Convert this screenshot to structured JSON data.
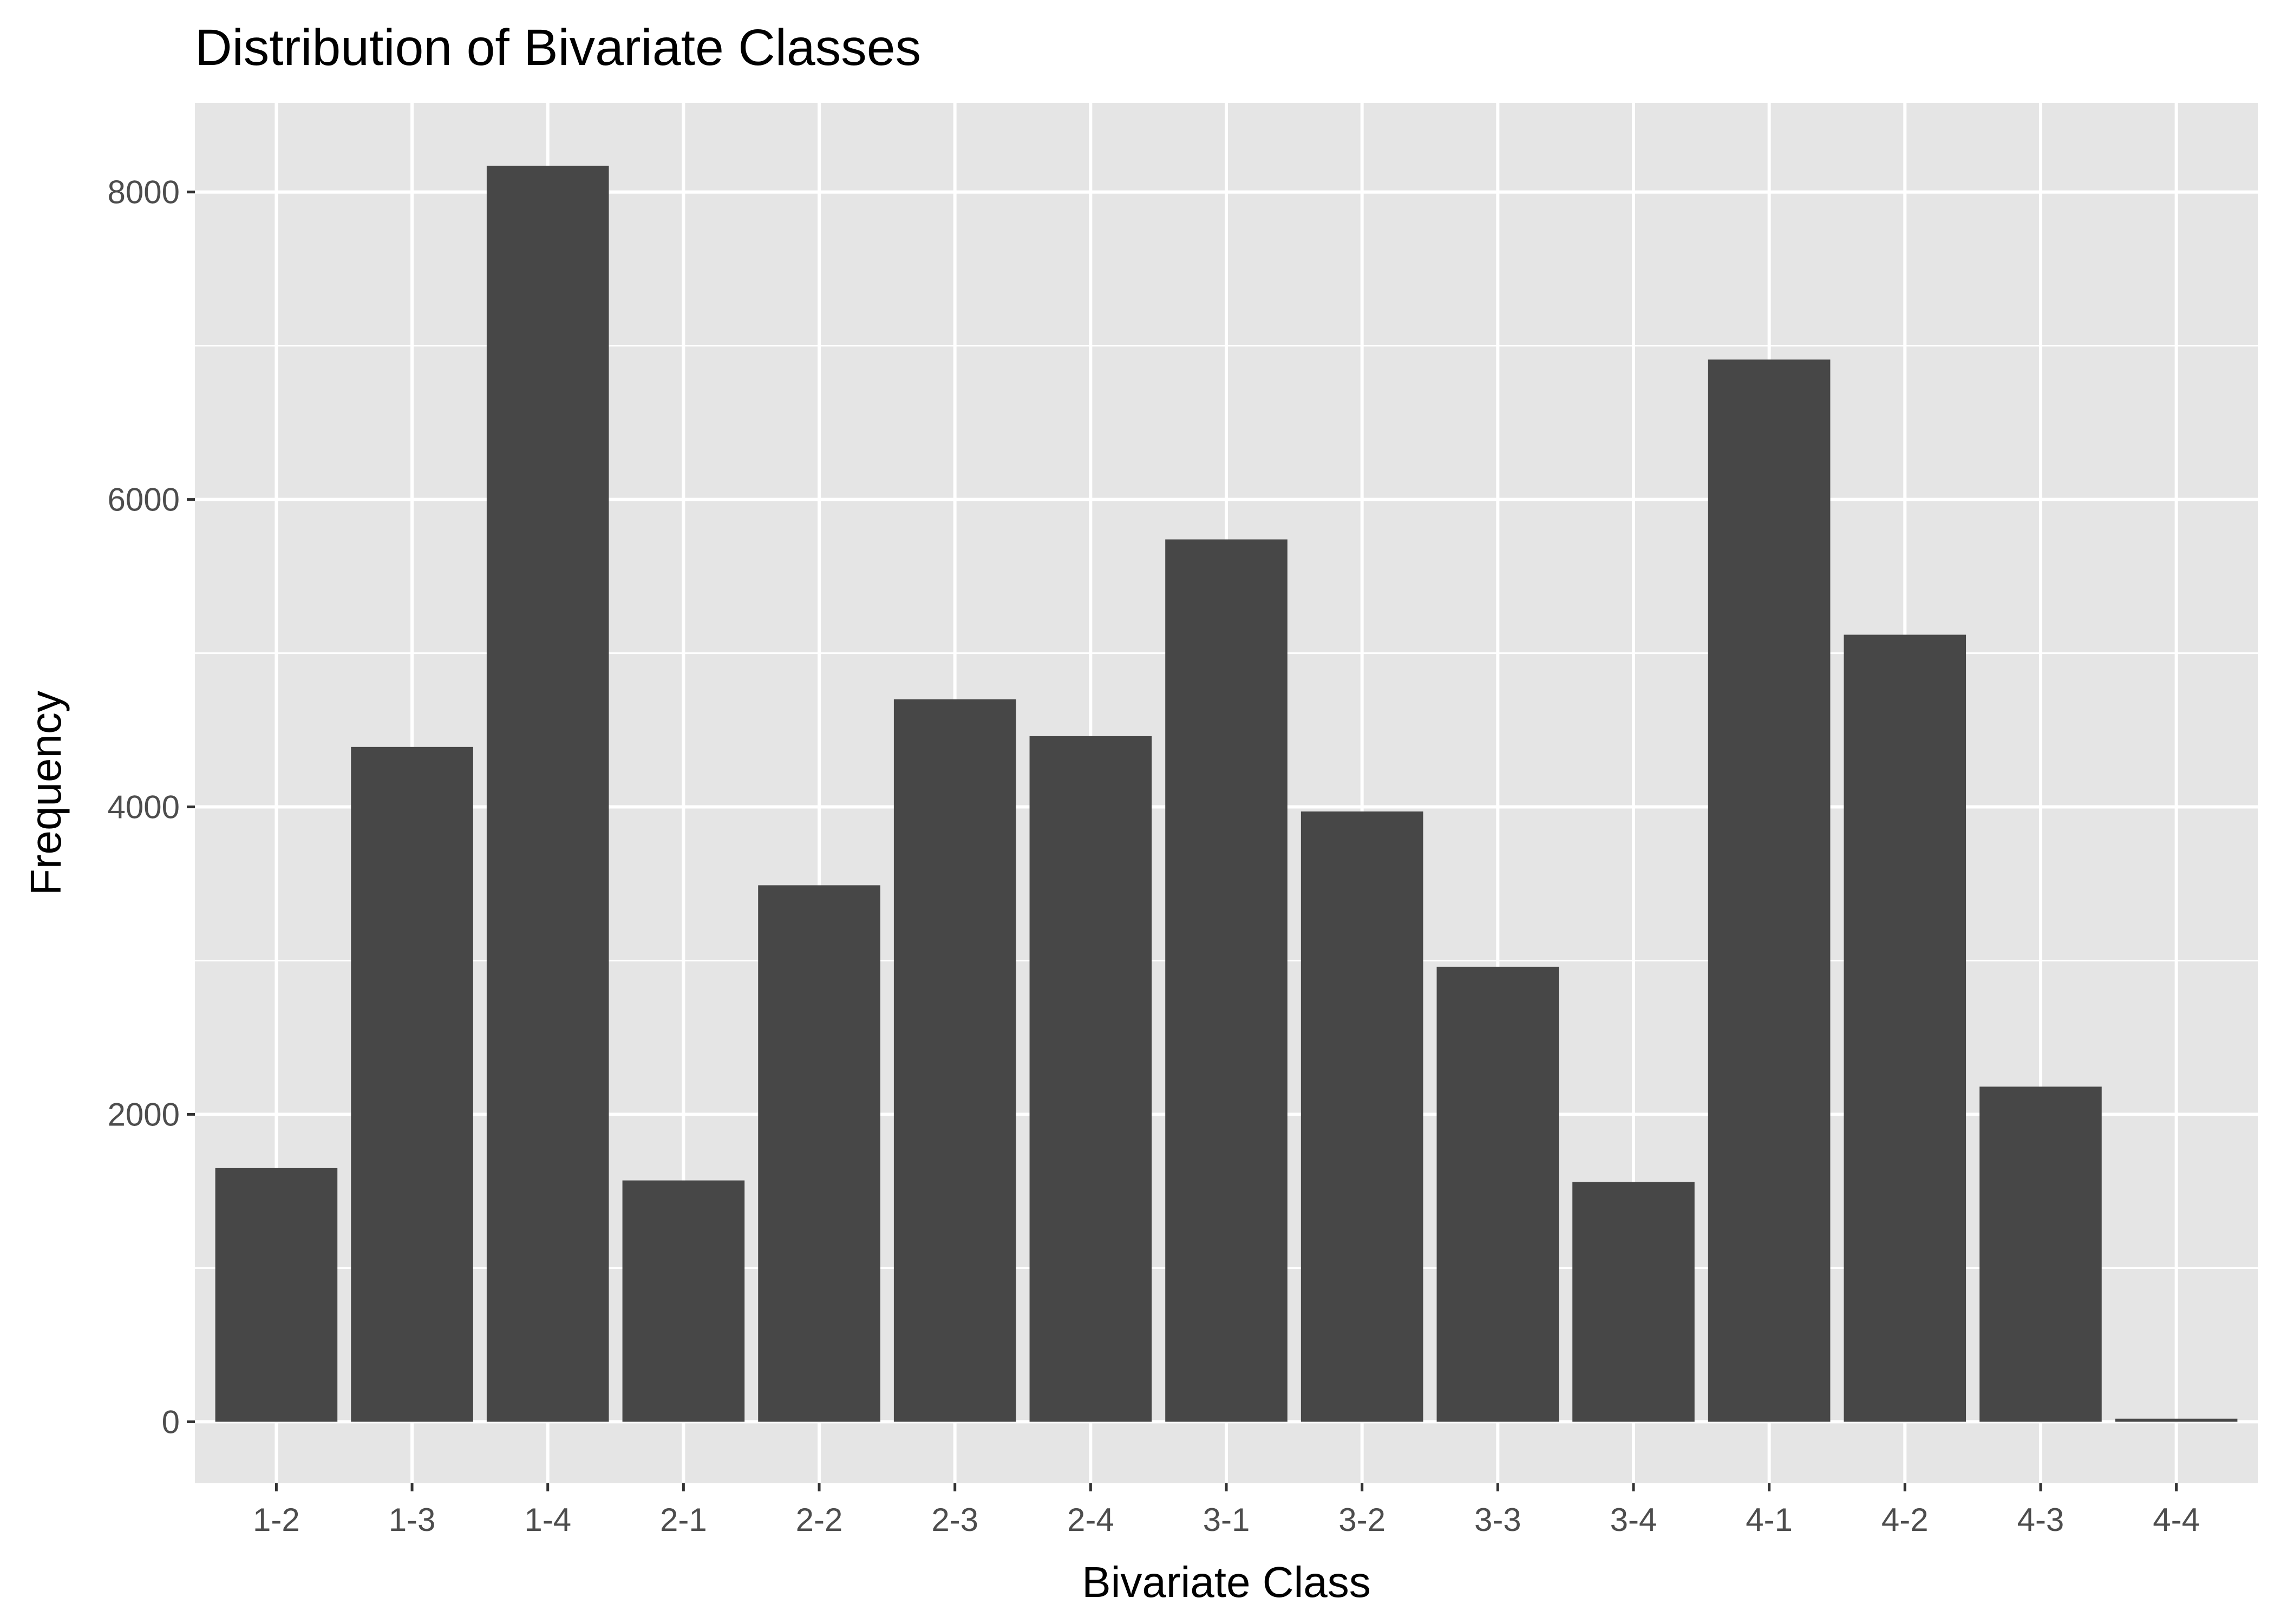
{
  "chart_data": {
    "type": "bar",
    "title": "Distribution of Bivariate Classes",
    "xlabel": "Bivariate Class",
    "ylabel": "Frequency",
    "categories": [
      "1-2",
      "1-3",
      "1-4",
      "2-1",
      "2-2",
      "2-3",
      "2-4",
      "3-1",
      "3-2",
      "3-3",
      "3-4",
      "4-1",
      "4-2",
      "4-3",
      "4-4"
    ],
    "values": [
      1650,
      4390,
      8170,
      1570,
      3490,
      4700,
      4460,
      5740,
      3970,
      2960,
      1560,
      6910,
      5120,
      2180,
      20
    ],
    "ylim": [
      -400,
      8580
    ],
    "yticks": [
      0,
      2000,
      4000,
      6000,
      8000
    ],
    "grid": true,
    "legend": "none",
    "colors": {
      "bar": "#474747",
      "panel_background": "#e5e5e5",
      "grid": "#ffffff",
      "tick_label": "#4d4d4d"
    }
  }
}
